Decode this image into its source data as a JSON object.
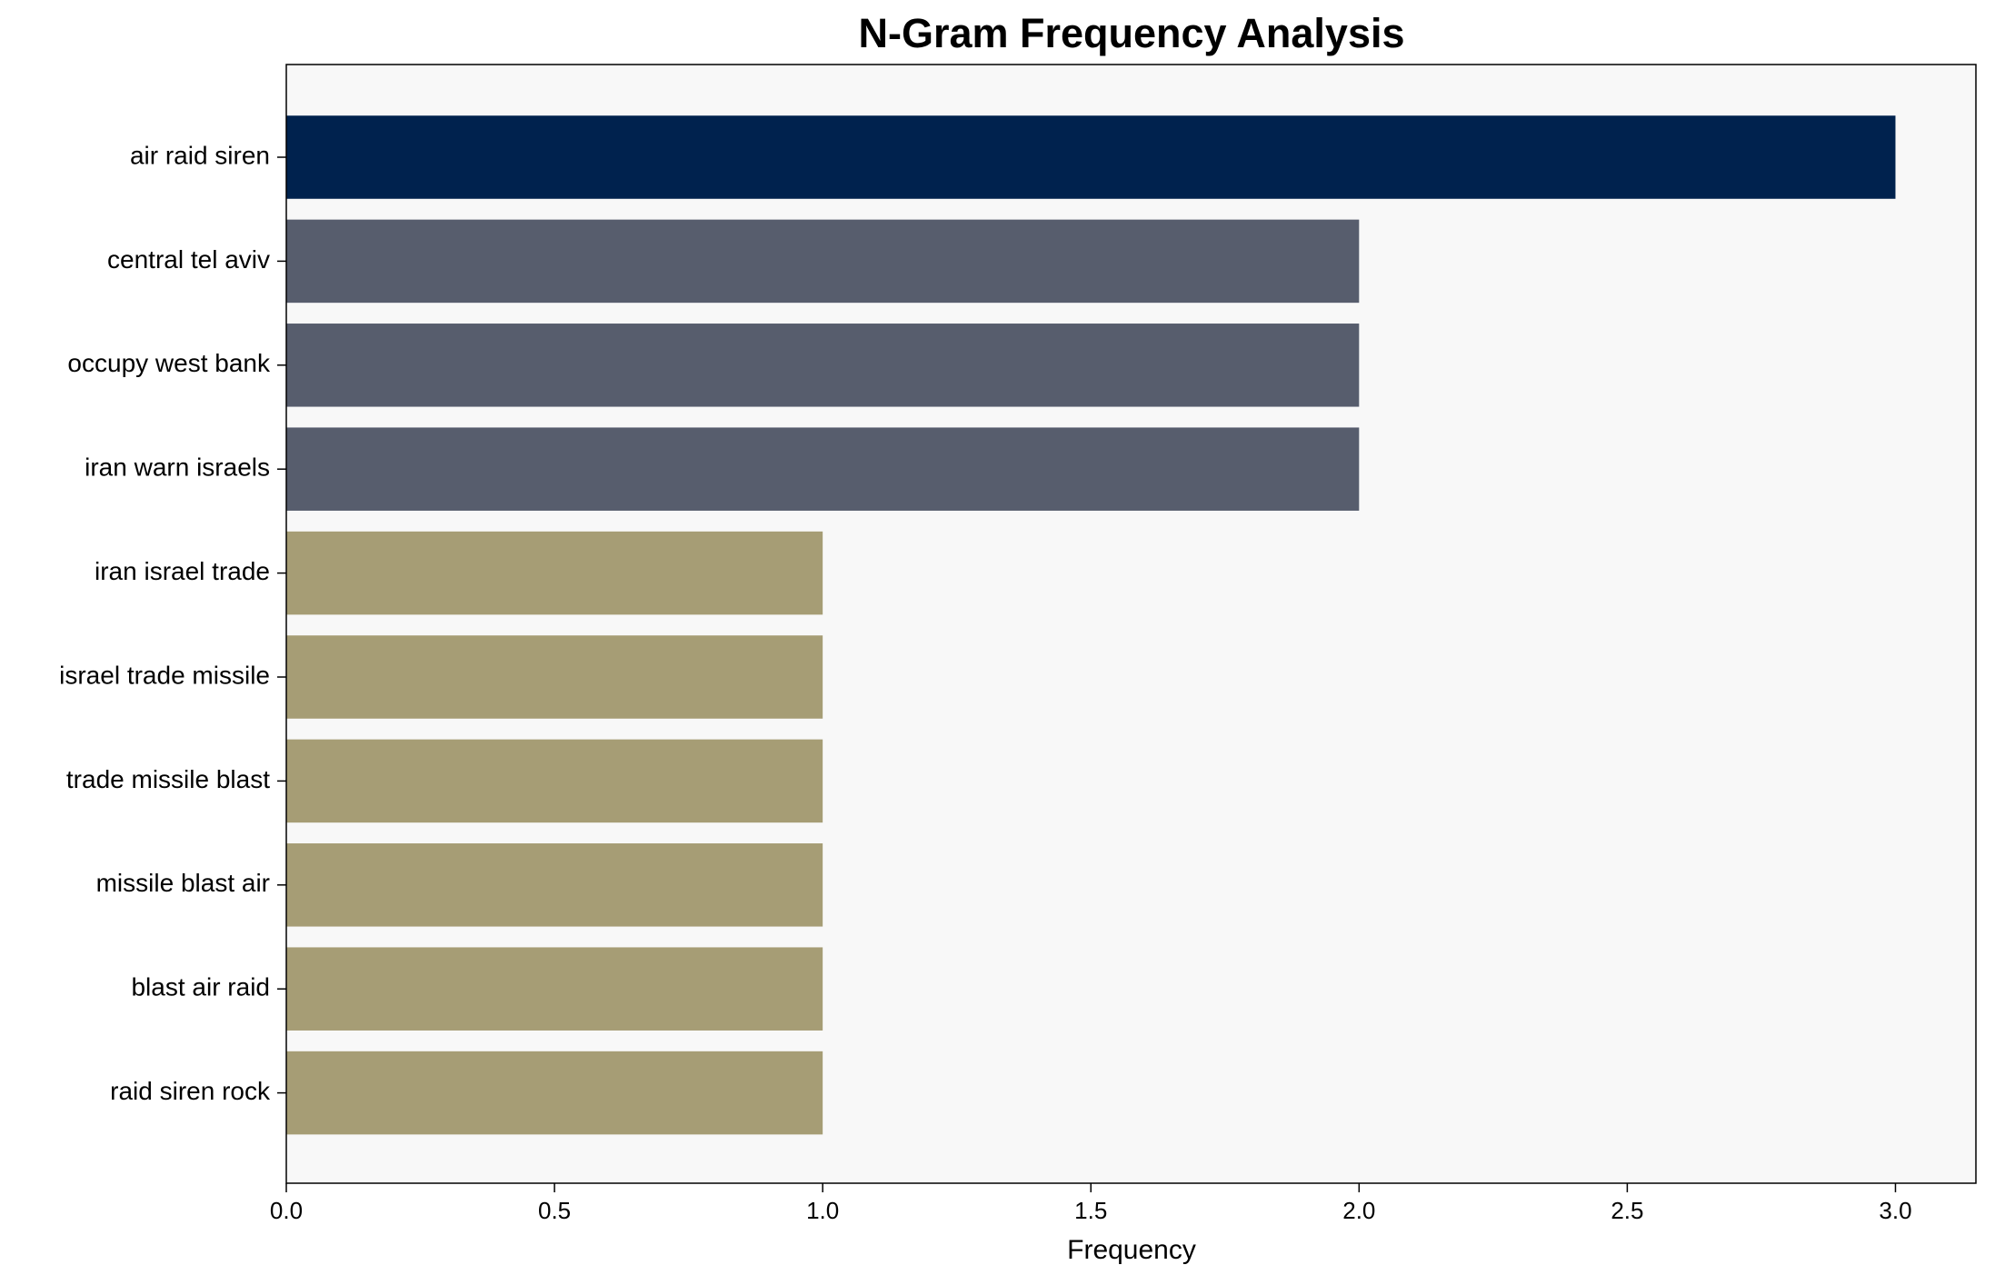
{
  "chart_data": {
    "type": "barh",
    "title": "N-Gram Frequency Analysis",
    "xlabel": "Frequency",
    "categories": [
      "air raid siren",
      "central tel aviv",
      "occupy west bank",
      "iran warn israels",
      "iran israel trade",
      "israel trade missile",
      "trade missile blast",
      "missile blast air",
      "blast air raid",
      "raid siren rock"
    ],
    "values": [
      3,
      2,
      2,
      2,
      1,
      1,
      1,
      1,
      1,
      1
    ],
    "colors": [
      "#00224e",
      "#575d6d",
      "#575d6d",
      "#575d6d",
      "#a69d75",
      "#a69d75",
      "#a69d75",
      "#a69d75",
      "#a69d75",
      "#a69d75"
    ],
    "xlim": [
      0,
      3.15
    ],
    "xticks": [
      {
        "value": 0,
        "label": "0.0"
      },
      0.5,
      {
        "value": 1,
        "label": "1.0"
      },
      1.5,
      {
        "value": 2,
        "label": "2.0"
      },
      2.5,
      {
        "value": 3,
        "label": "3.0"
      }
    ],
    "background": "#f8f8f8"
  }
}
